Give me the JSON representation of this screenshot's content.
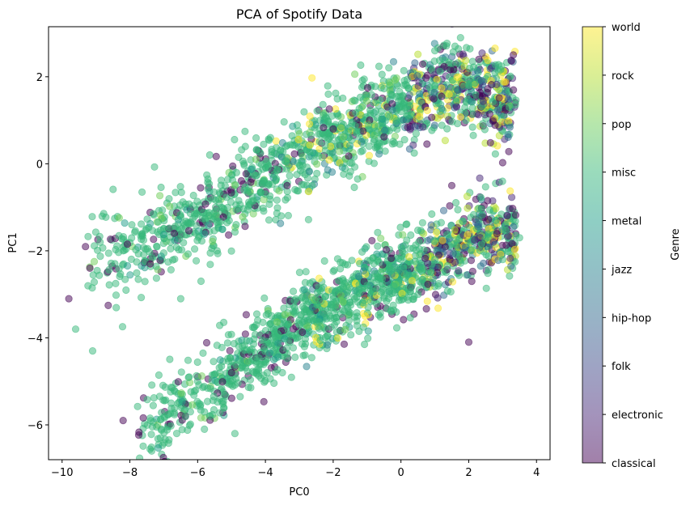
{
  "chart_data": {
    "type": "scatter",
    "title": "PCA of Spotify Data",
    "xlabel": "PC0",
    "ylabel": "PC1",
    "xlim": [
      -10.4,
      4.4
    ],
    "ylim": [
      -6.8,
      3.15
    ],
    "xticks": [
      -10,
      -8,
      -6,
      -4,
      -2,
      0,
      2,
      4
    ],
    "yticks": [
      -6,
      -4,
      -2,
      0,
      2
    ],
    "grid": false,
    "marker_alpha": 0.5,
    "colorbar": {
      "label": "Genre",
      "colormap": "viridis",
      "categories": [
        "classical",
        "electronic",
        "folk",
        "hip-hop",
        "jazz",
        "metal",
        "misc",
        "pop",
        "rock",
        "world"
      ],
      "colors": [
        "#440154",
        "#482878",
        "#3e4989",
        "#31688e",
        "#26828e",
        "#1f9e89",
        "#35b779",
        "#6ece58",
        "#b5de2b",
        "#fde725"
      ]
    },
    "clusters": [
      {
        "name": "upper band",
        "x_range": [
          -9.8,
          3.6
        ],
        "center_line": [
          [
            -8.5,
            -2.2
          ],
          [
            -6,
            -1.3
          ],
          [
            -4,
            -0.3
          ],
          [
            -2,
            0.6
          ],
          [
            0,
            1.3
          ],
          [
            1.5,
            1.9
          ],
          [
            3,
            1.4
          ]
        ],
        "half_width": 0.9,
        "dominant_genre": "misc",
        "sample_points": [
          [
            -9.8,
            -3.1
          ],
          [
            -9.6,
            -3.8
          ],
          [
            -9.1,
            -4.3
          ],
          [
            -8.2,
            -2.0
          ],
          [
            -7.4,
            -2.3
          ],
          [
            -6.5,
            -3.1
          ],
          [
            -5.9,
            -2.7
          ],
          [
            -4.0,
            -0.7
          ],
          [
            -2.0,
            0.8
          ],
          [
            0.0,
            1.2
          ],
          [
            1.0,
            2.6
          ],
          [
            2.0,
            1.8
          ],
          [
            2.3,
            2.4
          ],
          [
            3.2,
            1.3
          ],
          [
            1.5,
            2.3
          ]
        ]
      },
      {
        "name": "lower band",
        "x_range": [
          -8.2,
          3.6
        ],
        "center_line": [
          [
            -7,
            -5.9
          ],
          [
            -5,
            -4.8
          ],
          [
            -3,
            -3.6
          ],
          [
            -1,
            -2.9
          ],
          [
            1,
            -2.2
          ],
          [
            2.5,
            -1.5
          ],
          [
            3.5,
            -1.7
          ]
        ],
        "half_width": 0.8,
        "dominant_genre": "misc",
        "sample_points": [
          [
            -8.2,
            -5.9
          ],
          [
            -7.1,
            -6.3
          ],
          [
            -5.8,
            -6.1
          ],
          [
            -4.9,
            -6.2
          ],
          [
            -5.0,
            -4.8
          ],
          [
            -3.0,
            -3.7
          ],
          [
            -1.0,
            -2.8
          ],
          [
            1.0,
            -2.2
          ],
          [
            2.0,
            -4.1
          ],
          [
            2.8,
            -1.3
          ],
          [
            3.5,
            -1.7
          ],
          [
            3.0,
            -2.2
          ],
          [
            1.5,
            -0.5
          ],
          [
            -2.0,
            -3.3
          ],
          [
            -3.5,
            -4.8
          ]
        ]
      }
    ]
  }
}
